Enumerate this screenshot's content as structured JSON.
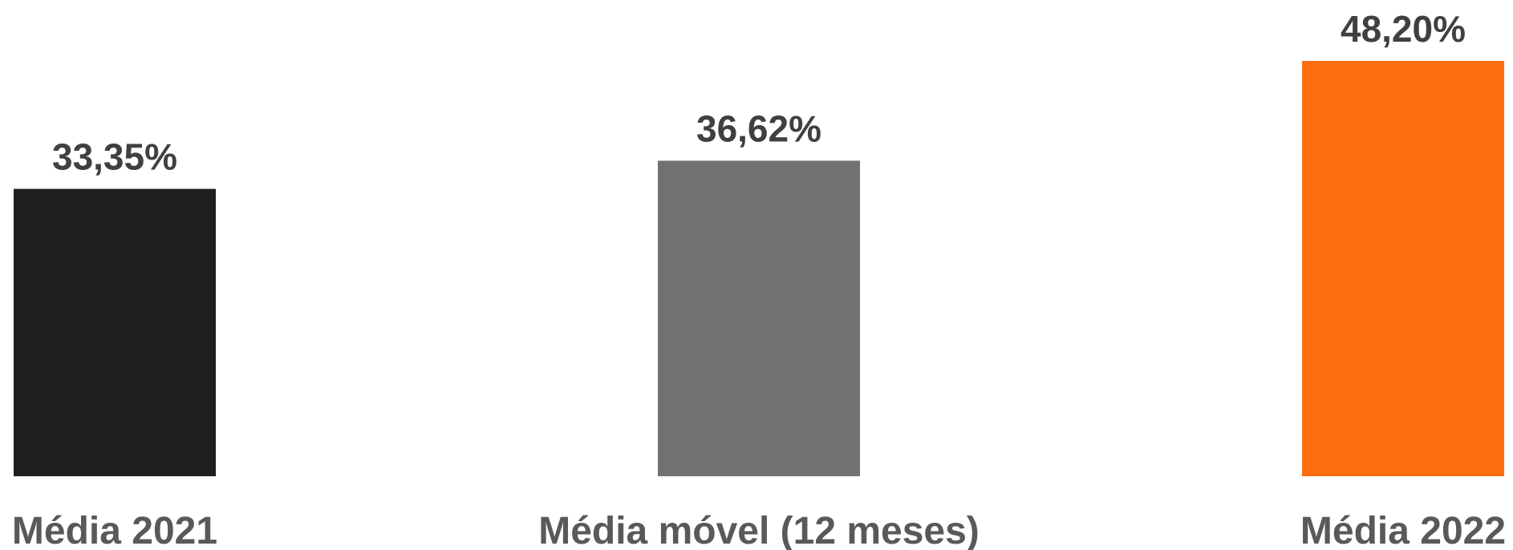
{
  "chart_data": {
    "type": "bar",
    "categories": [
      "Média 2021",
      "Média móvel (12 meses)",
      "Média 2022"
    ],
    "values": [
      33.35,
      36.62,
      48.2
    ],
    "data_labels": [
      "33,35%",
      "36,62%",
      "48,20%"
    ],
    "colors": [
      "#1f1f1e",
      "#737070",
      "#fe6d10"
    ],
    "title": "",
    "xlabel": "",
    "ylabel": "",
    "ylim": [
      0,
      48.2
    ],
    "grid": false,
    "legend": "none"
  }
}
